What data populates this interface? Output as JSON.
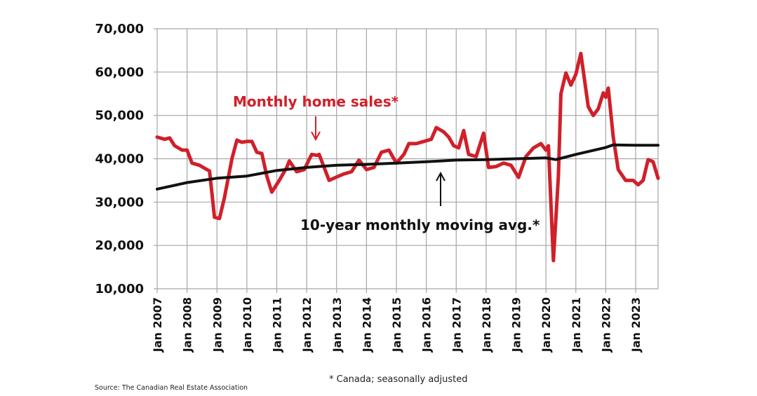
{
  "chart_data": {
    "type": "line",
    "title": "",
    "xlabel": "",
    "ylabel": "",
    "ylim": [
      10000,
      70000
    ],
    "xlim": [
      "2007-01",
      "2023-10"
    ],
    "grid": true,
    "y_ticks": [
      "70,000",
      "60,000",
      "50,000",
      "40,000",
      "30,000",
      "20,000",
      "10,000"
    ],
    "y_tick_values": [
      70000,
      60000,
      50000,
      40000,
      30000,
      20000,
      10000
    ],
    "x_ticks": [
      "Jan 2007",
      "Jan 2008",
      "Jan 2009",
      "Jan 2010",
      "Jan 2011",
      "Jan 2012",
      "Jan 2013",
      "Jan 2014",
      "Jan 2015",
      "Jan 2016",
      "Jan 2017",
      "Jan 2018",
      "Jan 2019",
      "Jan 2020",
      "Jan 2021",
      "Jan 2022",
      "Jan 2023"
    ],
    "series": [
      {
        "name": "Monthly home sales*",
        "color": "#d0202a",
        "points": [
          [
            "2007-01",
            45000
          ],
          [
            "2007-04",
            44500
          ],
          [
            "2007-06",
            44800
          ],
          [
            "2007-08",
            43000
          ],
          [
            "2007-11",
            42000
          ],
          [
            "2008-01",
            42000
          ],
          [
            "2008-03",
            39000
          ],
          [
            "2008-06",
            38500
          ],
          [
            "2008-09",
            37500
          ],
          [
            "2008-10",
            37200
          ],
          [
            "2008-11",
            32000
          ],
          [
            "2008-12",
            26500
          ],
          [
            "2009-02",
            26200
          ],
          [
            "2009-04",
            31000
          ],
          [
            "2009-07",
            40000
          ],
          [
            "2009-09",
            44300
          ],
          [
            "2009-11",
            43800
          ],
          [
            "2010-01",
            44000
          ],
          [
            "2010-03",
            44000
          ],
          [
            "2010-05",
            41500
          ],
          [
            "2010-07",
            41200
          ],
          [
            "2010-09",
            36000
          ],
          [
            "2010-11",
            32300
          ],
          [
            "2011-02",
            35000
          ],
          [
            "2011-05",
            38000
          ],
          [
            "2011-06",
            39500
          ],
          [
            "2011-09",
            37000
          ],
          [
            "2011-12",
            37500
          ],
          [
            "2012-03",
            41000
          ],
          [
            "2012-05",
            40800
          ],
          [
            "2012-06",
            41000
          ],
          [
            "2012-08",
            38000
          ],
          [
            "2012-10",
            35000
          ],
          [
            "2013-01",
            35800
          ],
          [
            "2013-04",
            36500
          ],
          [
            "2013-07",
            37000
          ],
          [
            "2013-10",
            39700
          ],
          [
            "2014-01",
            37500
          ],
          [
            "2014-04",
            38000
          ],
          [
            "2014-07",
            41500
          ],
          [
            "2014-10",
            42000
          ],
          [
            "2015-01",
            39000
          ],
          [
            "2015-04",
            41000
          ],
          [
            "2015-06",
            43500
          ],
          [
            "2015-09",
            43500
          ],
          [
            "2015-12",
            44000
          ],
          [
            "2016-03",
            44500
          ],
          [
            "2016-05",
            47200
          ],
          [
            "2016-08",
            46200
          ],
          [
            "2016-10",
            45000
          ],
          [
            "2016-12",
            43000
          ],
          [
            "2017-02",
            42500
          ],
          [
            "2017-04",
            46500
          ],
          [
            "2017-06",
            41000
          ],
          [
            "2017-09",
            40500
          ],
          [
            "2017-12",
            45900
          ],
          [
            "2018-02",
            38000
          ],
          [
            "2018-05",
            38200
          ],
          [
            "2018-08",
            39000
          ],
          [
            "2018-11",
            38500
          ],
          [
            "2019-02",
            35700
          ],
          [
            "2019-05",
            40500
          ],
          [
            "2019-08",
            42500
          ],
          [
            "2019-11",
            43500
          ],
          [
            "2020-01",
            42000
          ],
          [
            "2020-02",
            43000
          ],
          [
            "2020-04",
            16500
          ],
          [
            "2020-06",
            36000
          ],
          [
            "2020-07",
            55000
          ],
          [
            "2020-09",
            59800
          ],
          [
            "2020-11",
            57000
          ],
          [
            "2021-01",
            59500
          ],
          [
            "2021-03",
            64300
          ],
          [
            "2021-06",
            52000
          ],
          [
            "2021-08",
            50000
          ],
          [
            "2021-10",
            51500
          ],
          [
            "2021-12",
            55200
          ],
          [
            "2022-01",
            54200
          ],
          [
            "2022-02",
            56300
          ],
          [
            "2022-04",
            45000
          ],
          [
            "2022-06",
            37500
          ],
          [
            "2022-09",
            35000
          ],
          [
            "2022-12",
            35000
          ],
          [
            "2023-02",
            34000
          ],
          [
            "2023-04",
            35000
          ],
          [
            "2023-06",
            39800
          ],
          [
            "2023-08",
            39300
          ],
          [
            "2023-10",
            35500
          ]
        ]
      },
      {
        "name": "10-year monthly moving avg.*",
        "color": "#111111",
        "points": [
          [
            "2007-01",
            33000
          ],
          [
            "2008-01",
            34500
          ],
          [
            "2009-01",
            35500
          ],
          [
            "2010-01",
            36000
          ],
          [
            "2011-01",
            37300
          ],
          [
            "2012-01",
            38000
          ],
          [
            "2013-01",
            38500
          ],
          [
            "2014-01",
            38700
          ],
          [
            "2015-01",
            39000
          ],
          [
            "2016-01",
            39300
          ],
          [
            "2017-01",
            39700
          ],
          [
            "2018-01",
            39800
          ],
          [
            "2019-01",
            40000
          ],
          [
            "2020-01",
            40200
          ],
          [
            "2020-05",
            39800
          ],
          [
            "2021-01",
            41000
          ],
          [
            "2022-01",
            42600
          ],
          [
            "2022-04",
            43200
          ],
          [
            "2023-01",
            43100
          ],
          [
            "2023-10",
            43100
          ]
        ]
      }
    ],
    "annotations": {
      "sales_label": "Monthly home sales*",
      "avg_label": "10-year monthly moving avg.*"
    }
  },
  "footnote": "* Canada; seasonally adjusted",
  "source": "Source: The Canadian Real Estate Association"
}
